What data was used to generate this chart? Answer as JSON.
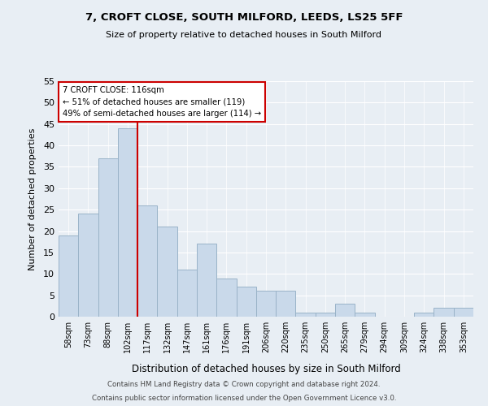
{
  "title": "7, CROFT CLOSE, SOUTH MILFORD, LEEDS, LS25 5FF",
  "subtitle": "Size of property relative to detached houses in South Milford",
  "xlabel": "Distribution of detached houses by size in South Milford",
  "ylabel": "Number of detached properties",
  "categories": [
    "58sqm",
    "73sqm",
    "88sqm",
    "102sqm",
    "117sqm",
    "132sqm",
    "147sqm",
    "161sqm",
    "176sqm",
    "191sqm",
    "206sqm",
    "220sqm",
    "235sqm",
    "250sqm",
    "265sqm",
    "279sqm",
    "294sqm",
    "309sqm",
    "324sqm",
    "338sqm",
    "353sqm"
  ],
  "values": [
    19,
    24,
    37,
    44,
    26,
    21,
    11,
    17,
    9,
    7,
    6,
    6,
    1,
    1,
    3,
    1,
    0,
    0,
    1,
    2,
    2
  ],
  "bar_color": "#c9d9ea",
  "bar_edge_color": "#9ab3c8",
  "vline_color": "#cc0000",
  "vline_x": 4.5,
  "annotation_title": "7 CROFT CLOSE: 116sqm",
  "annotation_line1": "← 51% of detached houses are smaller (119)",
  "annotation_line2": "49% of semi-detached houses are larger (114) →",
  "annotation_box_color": "#cc0000",
  "ylim": [
    0,
    55
  ],
  "yticks": [
    0,
    5,
    10,
    15,
    20,
    25,
    30,
    35,
    40,
    45,
    50,
    55
  ],
  "footnote1": "Contains HM Land Registry data © Crown copyright and database right 2024.",
  "footnote2": "Contains public sector information licensed under the Open Government Licence v3.0.",
  "background_color": "#e8eef4",
  "plot_bg_color": "#e8eef4"
}
